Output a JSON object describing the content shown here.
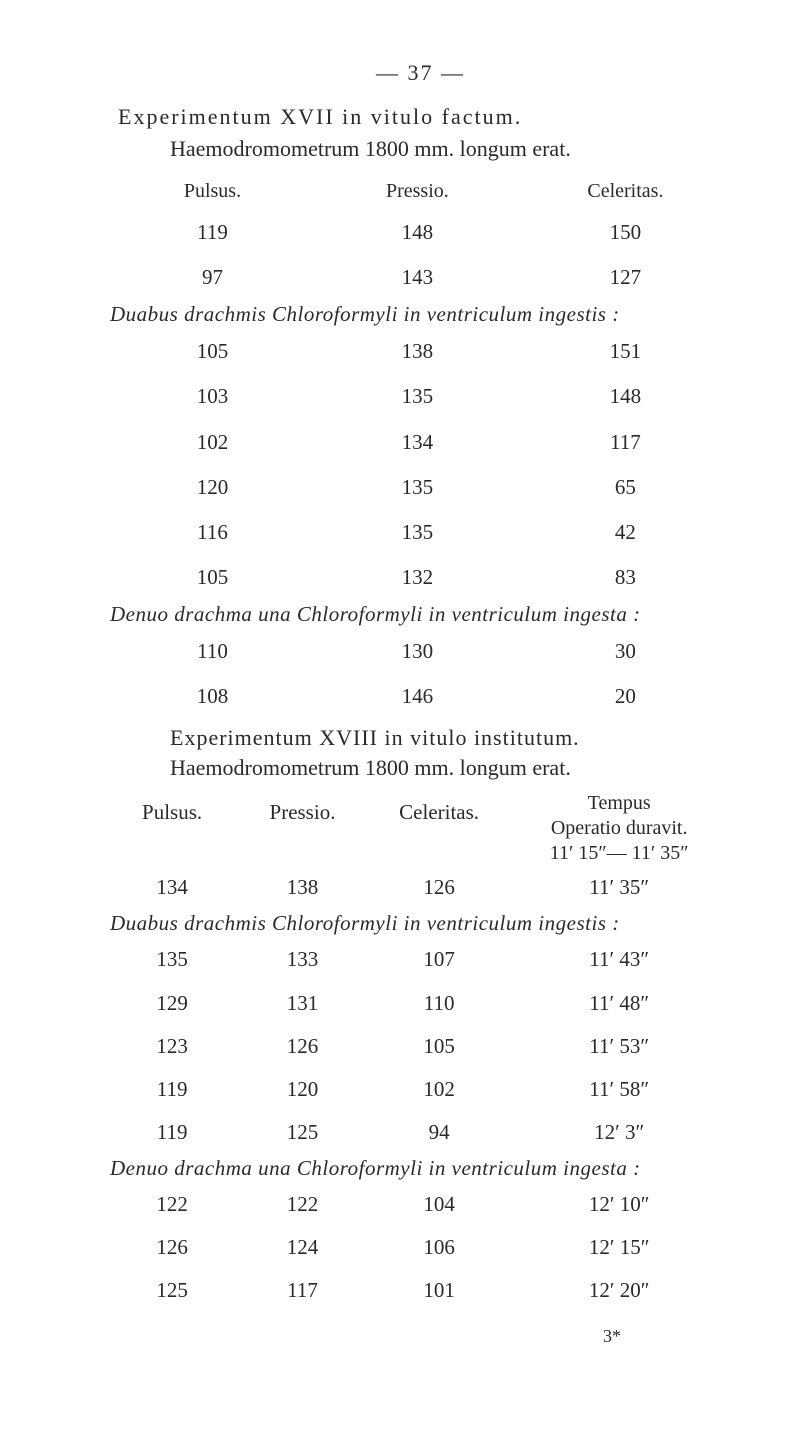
{
  "page_number_line": "—   37   —",
  "exp17_title": "Experimentum  XVII  in  vitulo  factum.",
  "exp17_sub": "Haemodromometrum 1800 mm. longum erat.",
  "headers3": {
    "c1": "Pulsus.",
    "c2": "Pressio.",
    "c3": "Celeritas."
  },
  "block1": [
    {
      "c1": "119",
      "c2": "148",
      "c3": "150"
    },
    {
      "c1": "97",
      "c2": "143",
      "c3": "127"
    }
  ],
  "rule_duabus": "Duabus  drachmis  Chloroformyli  in  ventriculum  ingestis :",
  "block2": [
    {
      "c1": "105",
      "c2": "138",
      "c3": "151"
    },
    {
      "c1": "103",
      "c2": "135",
      "c3": "148"
    },
    {
      "c1": "102",
      "c2": "134",
      "c3": "117"
    },
    {
      "c1": "120",
      "c2": "135",
      "c3": "65"
    },
    {
      "c1": "116",
      "c2": "135",
      "c3": "42"
    },
    {
      "c1": "105",
      "c2": "132",
      "c3": "83"
    }
  ],
  "rule_denuo": "Denuo  drachma  una  Chloroformyli  in  ventriculum  ingesta :",
  "block3": [
    {
      "c1": "110",
      "c2": "130",
      "c3": "30"
    },
    {
      "c1": "108",
      "c2": "146",
      "c3": "20"
    }
  ],
  "exp18_title": "Experimentum  XVIII  in  vitulo  institutum.",
  "exp18_sub": "Haemodromometrum 1800 mm. longum erat.",
  "headers4": {
    "q1": "Pulsus.",
    "q2": "Pressio.",
    "q3": "Celeritas.",
    "q4a": "Tempus",
    "q4b": "Operatio  duravit.",
    "q4c": "11′ 15″— 11′ 35″"
  },
  "row18_pre": {
    "q1": "134",
    "q2": "138",
    "q3": "126",
    "q4": "11′ 35″"
  },
  "rule_duabus2": "Duabus  drachmis  Chloroformyli  in  ventriculum  ingestis :",
  "block4": [
    {
      "q1": "135",
      "q2": "133",
      "q3": "107",
      "q4": "11′ 43″"
    },
    {
      "q1": "129",
      "q2": "131",
      "q3": "110",
      "q4": "11′ 48″"
    },
    {
      "q1": "123",
      "q2": "126",
      "q3": "105",
      "q4": "11′ 53″"
    },
    {
      "q1": "119",
      "q2": "120",
      "q3": "102",
      "q4": "11′ 58″"
    },
    {
      "q1": "119",
      "q2": "125",
      "q3": "94",
      "q4": "12′  3″"
    }
  ],
  "rule_denuo2": "Denuo  drachma  una  Chloroformyli  in  ventriculum  ingesta :",
  "block5": [
    {
      "q1": "122",
      "q2": "122",
      "q3": "104",
      "q4": "12′ 10″"
    },
    {
      "q1": "126",
      "q2": "124",
      "q3": "106",
      "q4": "12′ 15″"
    },
    {
      "q1": "125",
      "q2": "117",
      "q3": "101",
      "q4": "12′ 20″"
    }
  ],
  "signature": "3*"
}
